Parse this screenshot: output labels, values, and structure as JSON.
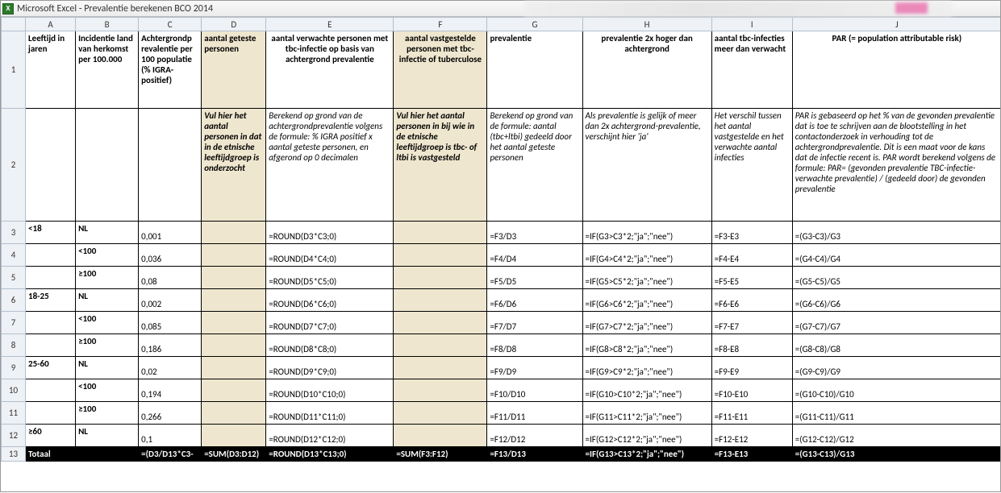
{
  "app_title": "Microsoft Excel - Prevalentie berekenen BCO 2014",
  "excel_icon_text": "X",
  "columns": [
    "A",
    "B",
    "C",
    "D",
    "E",
    "F",
    "G",
    "H",
    "I",
    "J"
  ],
  "row_numbers": [
    1,
    2,
    3,
    4,
    5,
    6,
    7,
    8,
    9,
    10,
    11,
    12,
    13
  ],
  "header_row": {
    "A": "Leeftijd in jaren",
    "B": "Incidentie land van herkomst per 100.000",
    "C": "Achtergrondp revalentie per 100 populatie (% IGRA-positief)",
    "D": "aantal geteste personen",
    "E": "aantal verwachte personen met tbc-infectie op basis van achtergrond prevalentie",
    "F": "aantal vastgestelde personen met tbc-infectie of tuberculose",
    "G": "prevalentie",
    "H": "prevalentie 2x hoger dan achtergrond",
    "I": "aantal tbc-infecties meer dan verwacht",
    "J": "PAR (= population attributable risk)"
  },
  "desc_row": {
    "D": "Vul hier het aantal personen in dat in de etnische leeftijdgroep is onderzocht",
    "E": "Berekend op grond van de achtergrondprevalentie volgens de formule: % IGRA positief x aantal geteste personen, en afgerond op 0 decimalen",
    "F": "Vul hier het aantal personen in bij wie in de etnische leeftijdgroep is tbc- of ltbi is vastgesteld",
    "G": "Berekend op grond van de formule: aantal (tbc+ltbi) gedeeld door het  aantal geteste personen",
    "H": "Als prevalentie is gelijk of meer dan 2x achtergrond-prevalentie, verschijnt hier 'ja'",
    "I": "Het verschil tussen het aantal vastgestelde en het verwachte aantal infecties",
    "J": "PAR is gebaseerd op het % van de gevonden prevalentie dat is toe te schrijven aan de blootstelling in het contactonderzoek in verhouding tot de achtergrondprevalentie. Dit is een maat voor de kans dat de infectie recent is. PAR wordt berekend volgens de formule: PAR= (gevonden prevalentie TBC-infectie- verwachte prevalentie) / (gedeeld door) de gevonden prevalentie"
  },
  "data_rows": [
    {
      "r": 3,
      "A": "<18",
      "B": "NL",
      "C": "0,001",
      "E": "=ROUND(D3*C3;0)",
      "G": "=F3/D3",
      "H": "=IF(G3>C3*2;\"ja\";\"nee\")",
      "I": "=F3-E3",
      "J": "=(G3-C3)/G3"
    },
    {
      "r": 4,
      "A": "",
      "B": "<100",
      "C": "0,036",
      "E": "=ROUND(D4*C4;0)",
      "G": "=F4/D4",
      "H": "=IF(G4>C4*2;\"ja\";\"nee\")",
      "I": "=F4-E4",
      "J": "=(G4-C4)/G4"
    },
    {
      "r": 5,
      "A": "",
      "B": "≥100",
      "C": "0,08",
      "E": "=ROUND(D5*C5;0)",
      "G": "=F5/D5",
      "H": "=IF(G5>C5*2;\"ja\";\"nee\")",
      "I": "=F5-E5",
      "J": "=(G5-C5)/G5"
    },
    {
      "r": 6,
      "A": "18-25",
      "B": "NL",
      "C": "0,002",
      "E": "=ROUND(D6*C6;0)",
      "G": "=F6/D6",
      "H": "=IF(G6>C6*2;\"ja\";\"nee\")",
      "I": "=F6-E6",
      "J": "=(G6-C6)/G6"
    },
    {
      "r": 7,
      "A": "",
      "B": "<100",
      "C": "0,085",
      "E": "=ROUND(D7*C7;0)",
      "G": "=F7/D7",
      "H": "=IF(G7>C7*2;\"ja\";\"nee\")",
      "I": "=F7-E7",
      "J": "=(G7-C7)/G7"
    },
    {
      "r": 8,
      "A": "",
      "B": "≥100",
      "C": "0,186",
      "E": "=ROUND(D8*C8;0)",
      "G": "=F8/D8",
      "H": "=IF(G8>C8*2;\"ja\";\"nee\")",
      "I": "=F8-E8",
      "J": "=(G8-C8)/G8"
    },
    {
      "r": 9,
      "A": "25-60",
      "B": "NL",
      "C": "0,02",
      "E": "=ROUND(D9*C9;0)",
      "G": "=F9/D9",
      "H": "=IF(G9>C9*2;\"ja\";\"nee\")",
      "I": "=F9-E9",
      "J": "=(G9-C9)/G9"
    },
    {
      "r": 10,
      "A": "",
      "B": "<100",
      "C": "0,194",
      "E": "=ROUND(D10*C10;0)",
      "G": "=F10/D10",
      "H": "=IF(G10>C10*2;\"ja\";\"nee\")",
      "I": "=F10-E10",
      "J": "=(G10-C10)/G10"
    },
    {
      "r": 11,
      "A": "",
      "B": "≥100",
      "C": "0,266",
      "E": "=ROUND(D11*C11;0)",
      "G": "=F11/D11",
      "H": "=IF(G11>C11*2;\"ja\";\"nee\")",
      "I": "=F11-E11",
      "J": "=(G11-C11)/G11"
    },
    {
      "r": 12,
      "A": "≥60",
      "B": "NL",
      "C": "0,1",
      "E": "=ROUND(D12*C12;0)",
      "G": "=F12/D12",
      "H": "=IF(G12>C12*2;\"ja\";\"nee\")",
      "I": "=F12-E12",
      "J": "=(G12-C12)/G12"
    }
  ],
  "total_row": {
    "label": "Totaal",
    "C": "=(D3/D13*C3-",
    "D": "=SUM(D3:D12)",
    "E": "=ROUND(D13*C13;0)",
    "F": "=SUM(F3:F12)",
    "G": "=F13/D13",
    "H": "=IF(G13>C13*2;\"ja\";\"nee\")",
    "I": "=F13-E13",
    "J": "=(G13-C13)/G13"
  },
  "colors": {
    "beige": "#eee6ce",
    "header_bg": "#eef1f5",
    "header_border": "#b3c0d0",
    "total_bg": "#000000",
    "total_fg": "#ffffff"
  }
}
